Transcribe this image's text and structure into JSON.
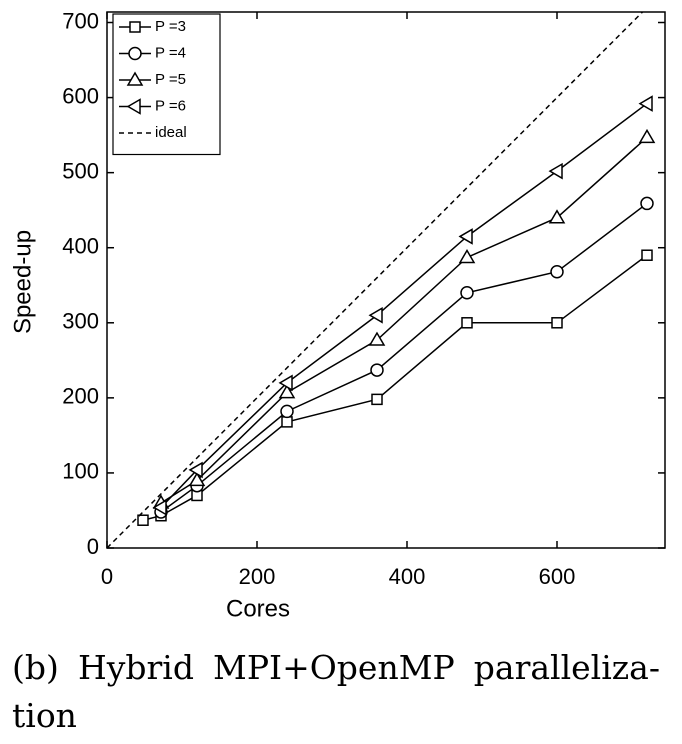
{
  "chart_data": {
    "type": "line",
    "xlabel": "Cores",
    "ylabel": "Speed-up",
    "xlim": [
      0,
      744
    ],
    "ylim": [
      0,
      714
    ],
    "xticks": [
      0,
      200,
      400,
      600
    ],
    "yticks": [
      0,
      100,
      200,
      300,
      400,
      500,
      600,
      700
    ],
    "legend": "upper-left",
    "series": [
      {
        "name": "P =3",
        "color": "#000000",
        "marker": "square",
        "x": [
          48,
          72,
          120,
          240,
          360,
          480,
          600,
          720
        ],
        "values": [
          37,
          43,
          70,
          168,
          198,
          300,
          300,
          390
        ]
      },
      {
        "name": "P =4",
        "color": "#000000",
        "marker": "circle",
        "x": [
          72,
          120,
          240,
          360,
          480,
          600,
          720
        ],
        "values": [
          48,
          83,
          182,
          237,
          340,
          368,
          459
        ]
      },
      {
        "name": "P =5",
        "color": "#000000",
        "marker": "triangle-up",
        "x": [
          72,
          120,
          240,
          360,
          480,
          600,
          720
        ],
        "values": [
          60,
          90,
          207,
          277,
          387,
          440,
          547
        ]
      },
      {
        "name": "P =6",
        "color": "#000000",
        "marker": "triangle-left",
        "x": [
          72,
          120,
          240,
          360,
          480,
          600,
          720
        ],
        "values": [
          54,
          104,
          220,
          310,
          415,
          502,
          592
        ]
      },
      {
        "name": "ideal",
        "color": "#000000",
        "dashed": true,
        "x": [
          0,
          714
        ],
        "values": [
          0,
          714
        ]
      }
    ]
  },
  "caption": [
    "(b) Hybrid MPI+OpenMP paralleliza-",
    "tion"
  ]
}
